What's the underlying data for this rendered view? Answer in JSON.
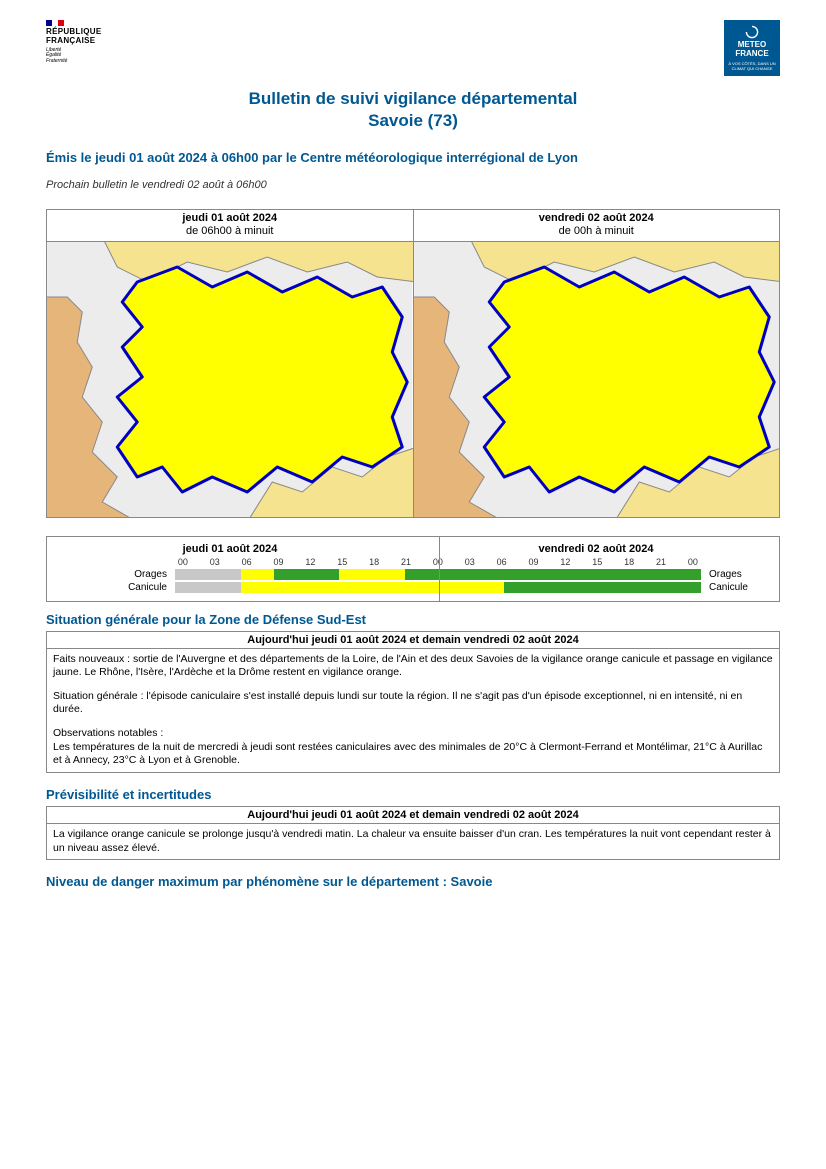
{
  "logos": {
    "rf_name": "RÉPUBLIQUE\nFRANÇAISE",
    "rf_motto": "Liberté\nÉgalité\nFraternité",
    "mf_name": "METEO\nFRANCE",
    "mf_tagline": "À VOS CÔTÉS, DANS UN CLIMAT QUI CHANGE",
    "flag_colors": [
      "#000091",
      "#ffffff",
      "#e1000f"
    ],
    "mf_bg": "#005892"
  },
  "title_line1": "Bulletin de suivi vigilance départemental",
  "title_line2": "Savoie (73)",
  "emission": "Émis le jeudi 01 août 2024 à 06h00 par le Centre météorologique interrégional de Lyon",
  "next_bulletin": "Prochain bulletin le vendredi 02 août à 06h00",
  "maps": {
    "day1": {
      "label": "jeudi 01 août 2024",
      "period": "de 06h00 à minuit"
    },
    "day2": {
      "label": "vendredi 02 août 2024",
      "period": "de 00h à minuit"
    },
    "colors": {
      "background": "#ececec",
      "dept_main": "#ffff00",
      "neighbor1": "#f6e38f",
      "neighbor2": "#e6b57a",
      "border": "#0000c0",
      "border_thin": "#888888"
    }
  },
  "timeline": {
    "day1_label": "jeudi 01 août 2024",
    "day2_label": "vendredi 02 août 2024",
    "hours": [
      "00",
      "03",
      "06",
      "09",
      "12",
      "15",
      "18",
      "21",
      "00",
      "03",
      "06",
      "09",
      "12",
      "15",
      "18",
      "21",
      "00"
    ],
    "rows": [
      {
        "label": "Orages",
        "segments": [
          {
            "color": "#c8c8c8",
            "width_pct": 12.5
          },
          {
            "color": "#ffff00",
            "width_pct": 6.25
          },
          {
            "color": "#33a02c",
            "width_pct": 12.5
          },
          {
            "color": "#ffff00",
            "width_pct": 12.5
          },
          {
            "color": "#33a02c",
            "width_pct": 56.25
          }
        ]
      },
      {
        "label": "Canicule",
        "segments": [
          {
            "color": "#c8c8c8",
            "width_pct": 12.5
          },
          {
            "color": "#ffff00",
            "width_pct": 50.0
          },
          {
            "color": "#33a02c",
            "width_pct": 37.5
          }
        ]
      }
    ]
  },
  "situation": {
    "title": "Situation générale pour la Zone de Défense Sud-Est",
    "header": "Aujourd'hui jeudi 01 août 2024 et demain vendredi 02 août 2024",
    "p1": "Faits nouveaux : sortie de l'Auvergne et des départements de la Loire, de l'Ain et des deux Savoies de la vigilance orange canicule et passage en vigilance jaune. Le Rhône, l'Isère, l'Ardèche et la Drôme restent en vigilance orange.",
    "p2": "Situation générale : l'épisode caniculaire s'est installé depuis lundi sur toute la région. Il ne s'agit pas d'un épisode exceptionnel, ni en intensité, ni en durée.",
    "p3": "Observations notables :\nLes températures de la nuit de mercredi à jeudi sont restées caniculaires avec des minimales de 20°C à Clermont-Ferrand et Montélimar, 21°C à Aurillac et à Annecy, 23°C à Lyon et à Grenoble."
  },
  "previsibilite": {
    "title": "Prévisibilité et incertitudes",
    "header": "Aujourd'hui jeudi 01 août 2024 et demain vendredi 02 août 2024",
    "body": "La vigilance orange canicule se prolonge jusqu'à vendredi matin. La chaleur va ensuite baisser d'un cran. Les températures la nuit vont cependant rester à un niveau assez élevé."
  },
  "niveau_title": "Niveau de danger maximum par phénomène sur le département : Savoie",
  "accent_color": "#005892"
}
